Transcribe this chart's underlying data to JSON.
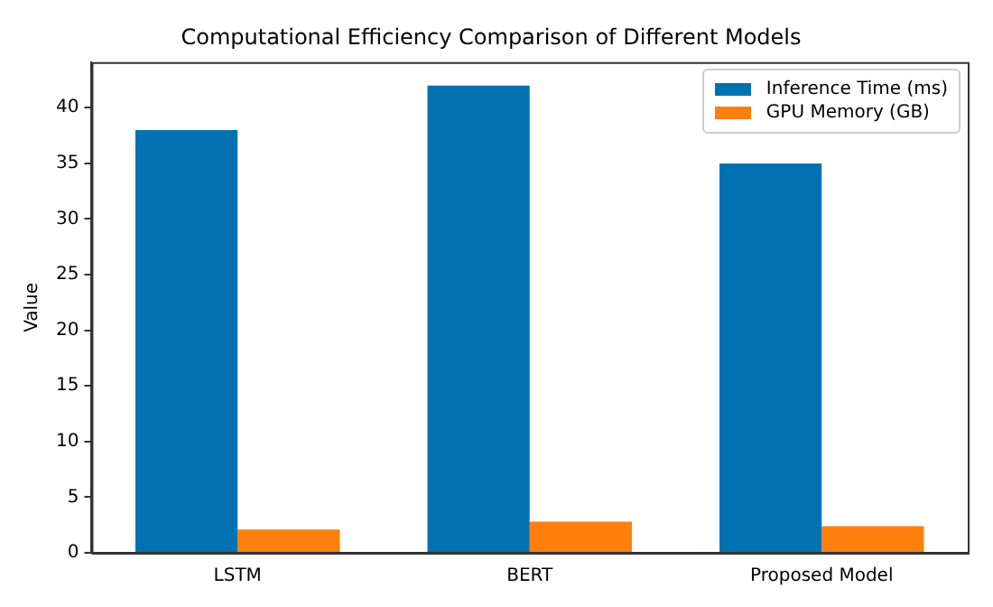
{
  "chart_data": {
    "type": "bar",
    "title": "Computational Efficiency Comparison of Different Models",
    "ylabel": "Value",
    "categories": [
      "LSTM",
      "BERT",
      "Proposed Model"
    ],
    "series": [
      {
        "name": "Inference Time (ms)",
        "color": "#0072b2",
        "values": [
          38,
          42,
          35
        ]
      },
      {
        "name": "GPU Memory (GB)",
        "color": "#ff7f0e",
        "values": [
          2.1,
          2.8,
          2.4
        ]
      }
    ],
    "ylim": [
      0,
      44.1
    ],
    "yticks": [
      0,
      5,
      10,
      15,
      20,
      25,
      30,
      35,
      40
    ],
    "grid": false,
    "legend": "top right"
  }
}
